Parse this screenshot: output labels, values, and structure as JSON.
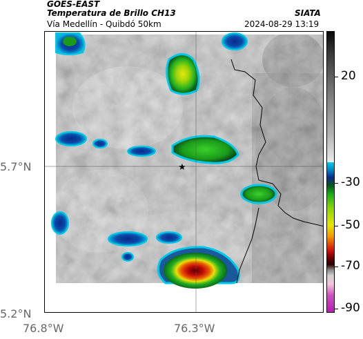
{
  "header": {
    "satellite": "GOES-EAST",
    "product": "Temperatura de Brillo CH13",
    "agency": "SIATA",
    "region": "Vía Medellín - Quibdó 50km",
    "timestamp": "2024-08-29 13:19"
  },
  "axes": {
    "lat_labels": [
      "5.7°N",
      "5.2°N"
    ],
    "lon_labels": [
      "76.8°W",
      "76.3°W"
    ]
  },
  "colorbar": {
    "labels": [
      "20",
      "-30",
      "-50",
      "-70",
      "-90"
    ],
    "colors": {
      "warm": "#1a1a1a",
      "cold_start": "#00c8e8",
      "green": "#19b019",
      "yellow": "#e6e60a",
      "red": "#d01010",
      "magenta": "#b020b0"
    }
  },
  "map": {
    "marker": "star-icon"
  }
}
